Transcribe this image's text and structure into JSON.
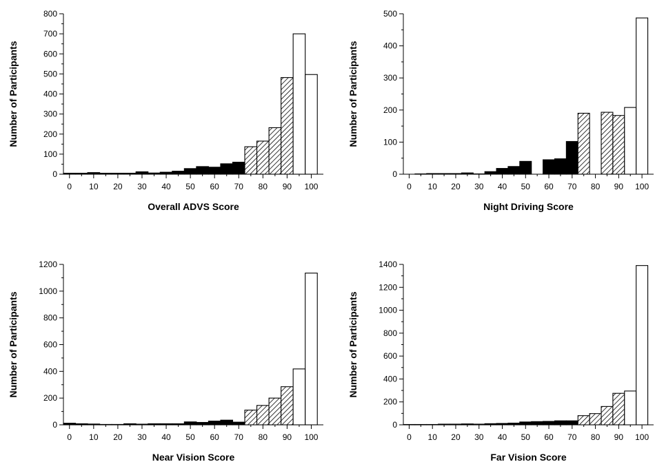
{
  "chart_data": [
    {
      "type": "bar",
      "xlabel": "Overall ADVS Score",
      "ylabel": "Number of Participants",
      "ylim": [
        0,
        800
      ],
      "yticks": [
        0,
        100,
        200,
        300,
        400,
        500,
        600,
        700,
        800
      ],
      "xticks": [
        0,
        10,
        20,
        30,
        40,
        50,
        60,
        70,
        80,
        90,
        100
      ],
      "xlim": [
        -2.5,
        105
      ],
      "grid": false,
      "bin_width": 5,
      "bins": [
        0,
        5,
        10,
        15,
        20,
        25,
        30,
        35,
        40,
        45,
        50,
        55,
        60,
        65,
        70,
        75,
        80,
        85,
        90,
        95,
        100
      ],
      "values": [
        5,
        5,
        8,
        5,
        5,
        5,
        12,
        6,
        10,
        15,
        28,
        38,
        35,
        52,
        60,
        137,
        165,
        232,
        482,
        700,
        497
      ],
      "patterns": [
        "solid",
        "solid",
        "solid",
        "solid",
        "solid",
        "solid",
        "solid",
        "solid",
        "solid",
        "solid",
        "solid",
        "solid",
        "solid",
        "solid",
        "solid",
        "hatched",
        "hatched",
        "hatched",
        "hatched",
        "open",
        "open"
      ]
    },
    {
      "type": "bar",
      "xlabel": "Night Driving Score",
      "ylabel": "Number of Participants",
      "ylim": [
        0,
        500
      ],
      "yticks": [
        0,
        100,
        200,
        300,
        400,
        500
      ],
      "xticks": [
        0,
        10,
        20,
        30,
        40,
        50,
        60,
        70,
        80,
        90,
        100
      ],
      "xlim": [
        -2.5,
        105
      ],
      "grid": false,
      "bin_width": 5,
      "bins": [
        0,
        5,
        10,
        15,
        20,
        25,
        30,
        35,
        40,
        45,
        50,
        55,
        60,
        65,
        70,
        75,
        80,
        85,
        90,
        95,
        100
      ],
      "values": [
        0,
        1,
        2,
        2,
        2,
        4,
        1,
        8,
        18,
        24,
        40,
        0,
        45,
        48,
        102,
        190,
        0,
        193,
        183,
        208,
        487
      ],
      "patterns": [
        "solid",
        "solid",
        "solid",
        "solid",
        "solid",
        "solid",
        "solid",
        "solid",
        "solid",
        "solid",
        "solid",
        "solid",
        "solid",
        "solid",
        "solid",
        "hatched",
        "hatched",
        "hatched",
        "hatched",
        "open",
        "open"
      ]
    },
    {
      "type": "bar",
      "xlabel": "Near Vision Score",
      "ylabel": "Number of Participants",
      "ylim": [
        0,
        1200
      ],
      "yticks": [
        0,
        200,
        400,
        600,
        800,
        1000,
        1200
      ],
      "xticks": [
        0,
        10,
        20,
        30,
        40,
        50,
        60,
        70,
        80,
        90,
        100
      ],
      "xlim": [
        -2.5,
        105
      ],
      "grid": false,
      "bin_width": 5,
      "bins": [
        0,
        5,
        10,
        15,
        20,
        25,
        30,
        35,
        40,
        45,
        50,
        55,
        60,
        65,
        70,
        75,
        80,
        85,
        90,
        95,
        100
      ],
      "values": [
        12,
        8,
        6,
        3,
        3,
        8,
        5,
        8,
        8,
        8,
        22,
        18,
        28,
        35,
        20,
        110,
        145,
        200,
        285,
        418,
        1135
      ],
      "patterns": [
        "solid",
        "solid",
        "solid",
        "solid",
        "solid",
        "solid",
        "solid",
        "solid",
        "solid",
        "solid",
        "solid",
        "solid",
        "solid",
        "solid",
        "solid",
        "hatched",
        "hatched",
        "hatched",
        "hatched",
        "open",
        "open"
      ]
    },
    {
      "type": "bar",
      "xlabel": "Far Vision Score",
      "ylabel": "Number of Participants",
      "ylim": [
        0,
        1400
      ],
      "yticks": [
        0,
        200,
        400,
        600,
        800,
        1000,
        1200,
        1400
      ],
      "xticks": [
        0,
        10,
        20,
        30,
        40,
        50,
        60,
        70,
        80,
        90,
        100
      ],
      "xlim": [
        -2.5,
        105
      ],
      "grid": false,
      "bin_width": 5,
      "bins": [
        0,
        5,
        10,
        15,
        20,
        25,
        30,
        35,
        40,
        45,
        50,
        55,
        60,
        65,
        70,
        75,
        80,
        85,
        90,
        95,
        100
      ],
      "values": [
        3,
        3,
        3,
        6,
        6,
        8,
        6,
        10,
        12,
        15,
        25,
        28,
        30,
        35,
        35,
        80,
        98,
        160,
        275,
        295,
        1390
      ],
      "patterns": [
        "solid",
        "solid",
        "solid",
        "solid",
        "solid",
        "solid",
        "solid",
        "solid",
        "solid",
        "solid",
        "solid",
        "solid",
        "solid",
        "solid",
        "solid",
        "hatched",
        "hatched",
        "hatched",
        "hatched",
        "open",
        "open"
      ]
    }
  ],
  "colors": {
    "solid": "#000000",
    "open": "#ffffff",
    "stroke": "#000000",
    "hatch": "#000000"
  }
}
